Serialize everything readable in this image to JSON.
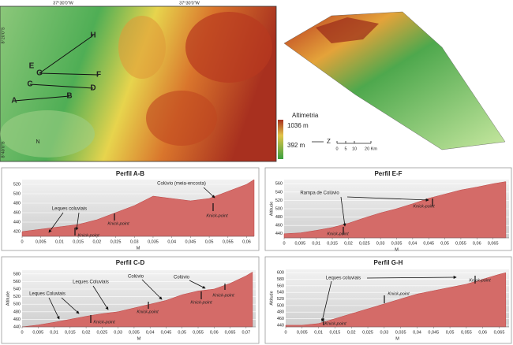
{
  "map": {
    "lon_labels": [
      "37°30'0\"W",
      "37°30'0\"W"
    ],
    "lat_labels": [
      "8°20'0\"S",
      "8°40'0\"S"
    ],
    "points": [
      "A",
      "B",
      "C",
      "D",
      "E",
      "F",
      "G",
      "H"
    ],
    "north": "N",
    "legend_title": "Altimetria",
    "legend_max": "1036 m",
    "legend_min": "392 m",
    "scale": [
      "0",
      "5",
      "10",
      "20 Km"
    ],
    "axis_letter": "Z"
  },
  "chart_data": [
    {
      "type": "area",
      "title": "Perfil A-B",
      "xlabel": "M",
      "color": "#d46b68",
      "x": [
        0,
        0.005,
        0.01,
        0.015,
        0.02,
        0.025,
        0.03,
        0.035,
        0.04,
        0.045,
        0.05,
        0.055,
        0.06,
        0.062
      ],
      "values": [
        420,
        425,
        430,
        435,
        445,
        460,
        475,
        495,
        490,
        485,
        490,
        505,
        520,
        530
      ],
      "xlim": [
        0,
        0.062
      ],
      "ylim": [
        410,
        530
      ],
      "yticks": [
        420,
        440,
        460,
        480,
        500,
        520
      ],
      "xticks": [
        0,
        {
          "value": 0.005,
          "label": "0,005"
        },
        {
          "value": 0.01,
          "label": "0,01"
        },
        {
          "value": 0.015,
          "label": "0,015"
        },
        {
          "value": 0.02,
          "label": "0,02"
        },
        {
          "value": 0.025,
          "label": "0,025"
        },
        {
          "value": 0.03,
          "label": "0,03"
        },
        {
          "value": 0.035,
          "label": "0,035"
        },
        {
          "value": 0.04,
          "label": "0,04"
        },
        {
          "value": 0.045,
          "label": "0,045"
        },
        {
          "value": 0.05,
          "label": "0,05"
        },
        {
          "value": 0.055,
          "label": "0,055"
        },
        {
          "value": 0.06,
          "label": "0,06"
        }
      ],
      "annotations": [
        "Leques coluviais",
        "Colúvio (meia-encosta)",
        "Knick-point",
        "Knick-point",
        "Knick-point"
      ]
    },
    {
      "type": "area",
      "title": "Perfil E-F",
      "xlabel": "M",
      "ylabel": "Altitude",
      "color": "#d46b68",
      "x": [
        0,
        0.005,
        0.01,
        0.015,
        0.02,
        0.025,
        0.03,
        0.035,
        0.04,
        0.045,
        0.05,
        0.055,
        0.06,
        0.065,
        0.069
      ],
      "values": [
        440,
        442,
        448,
        455,
        465,
        478,
        490,
        500,
        512,
        525,
        535,
        545,
        552,
        560,
        565
      ],
      "xlim": [
        0,
        0.07
      ],
      "ylim": [
        430,
        570
      ],
      "yticks": [
        440,
        460,
        480,
        500,
        520,
        540,
        560
      ],
      "xticks": [
        0,
        {
          "value": 0.005,
          "label": "0,005"
        },
        {
          "value": 0.01,
          "label": "0,01"
        },
        {
          "value": 0.015,
          "label": "0,015"
        },
        {
          "value": 0.02,
          "label": "0,02"
        },
        {
          "value": 0.025,
          "label": "0,025"
        },
        {
          "value": 0.03,
          "label": "0,03"
        },
        {
          "value": 0.035,
          "label": "0,035"
        },
        {
          "value": 0.04,
          "label": "0,04"
        },
        {
          "value": 0.045,
          "label": "0,045"
        },
        {
          "value": 0.05,
          "label": "0,05"
        },
        {
          "value": 0.055,
          "label": "0,055"
        },
        {
          "value": 0.06,
          "label": "0,06"
        },
        {
          "value": 0.065,
          "label": "0,065"
        }
      ],
      "annotations": [
        "Rampa de Colúvio",
        "Knick-point",
        "Knick-point"
      ]
    },
    {
      "type": "area",
      "title": "Perfil C-D",
      "xlabel": "M",
      "ylabel": "Altitude",
      "color": "#d46b68",
      "x": [
        0,
        0.005,
        0.01,
        0.015,
        0.02,
        0.025,
        0.03,
        0.035,
        0.04,
        0.045,
        0.05,
        0.055,
        0.06,
        0.065,
        0.07,
        0.072
      ],
      "values": [
        440,
        445,
        452,
        460,
        468,
        475,
        480,
        490,
        500,
        510,
        525,
        535,
        540,
        555,
        575,
        585
      ],
      "xlim": [
        0,
        0.073
      ],
      "ylim": [
        440,
        590
      ],
      "yticks": [
        440,
        460,
        480,
        500,
        520,
        540,
        560,
        580
      ],
      "xticks": [
        0,
        {
          "value": 0.005,
          "label": "0,005"
        },
        {
          "value": 0.01,
          "label": "0,01"
        },
        {
          "value": 0.015,
          "label": "0,015"
        },
        {
          "value": 0.02,
          "label": "0,02"
        },
        {
          "value": 0.025,
          "label": "0,025"
        },
        {
          "value": 0.03,
          "label": "0,03"
        },
        {
          "value": 0.035,
          "label": "0,035"
        },
        {
          "value": 0.04,
          "label": "0,04"
        },
        {
          "value": 0.045,
          "label": "0,045"
        },
        {
          "value": 0.05,
          "label": "0,05"
        },
        {
          "value": 0.055,
          "label": "0,055"
        },
        {
          "value": 0.06,
          "label": "0,06"
        },
        {
          "value": 0.065,
          "label": "0,065"
        },
        {
          "value": 0.07,
          "label": "0,07"
        }
      ],
      "annotations": [
        "Leques Coluviais",
        "Leques Coluviais",
        "Colúvio",
        "Colúvio",
        "Knick-point",
        "Knick-point",
        "Knick-point",
        "Knick-point"
      ]
    },
    {
      "type": "area",
      "title": "Perfil G-H",
      "xlabel": "M",
      "ylabel": "Altitude",
      "color": "#d46b68",
      "x": [
        0,
        0.005,
        0.01,
        0.015,
        0.02,
        0.025,
        0.03,
        0.035,
        0.04,
        0.045,
        0.05,
        0.055,
        0.06,
        0.065,
        0.067
      ],
      "values": [
        440,
        440,
        445,
        460,
        475,
        490,
        505,
        520,
        535,
        545,
        555,
        565,
        580,
        595,
        600
      ],
      "xlim": [
        0,
        0.068
      ],
      "ylim": [
        435,
        610
      ],
      "yticks": [
        440,
        460,
        480,
        500,
        520,
        540,
        560,
        580,
        600
      ],
      "xticks": [
        0,
        {
          "value": 0.005,
          "label": "0,005"
        },
        {
          "value": 0.01,
          "label": "0,01"
        },
        {
          "value": 0.015,
          "label": "0,015"
        },
        {
          "value": 0.02,
          "label": "0,02"
        },
        {
          "value": 0.025,
          "label": "0,025"
        },
        {
          "value": 0.03,
          "label": "0,03"
        },
        {
          "value": 0.035,
          "label": "0,035"
        },
        {
          "value": 0.04,
          "label": "0,04"
        },
        {
          "value": 0.045,
          "label": "0,045"
        },
        {
          "value": 0.05,
          "label": "0,05"
        },
        {
          "value": 0.055,
          "label": "0,055"
        },
        {
          "value": 0.06,
          "label": "0,06"
        },
        {
          "value": 0.065,
          "label": "0,065"
        }
      ],
      "annotations": [
        "Leques coluviais",
        "Knick-point",
        "Knick-point",
        "Knick-point"
      ]
    }
  ]
}
